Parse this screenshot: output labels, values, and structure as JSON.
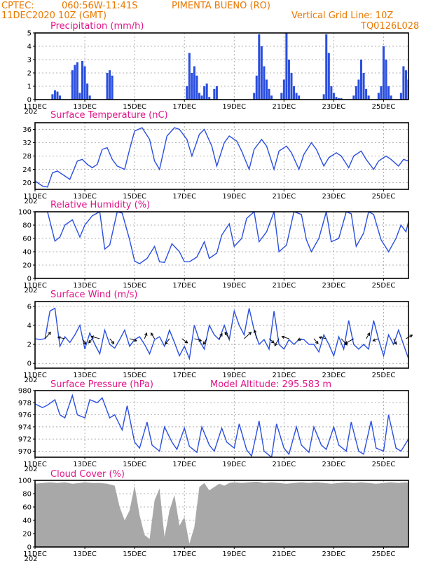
{
  "header": {
    "source": "CPTEC:",
    "coords": "060:56W-11:41S",
    "station": "PIMENTA BUENO (RO)",
    "datetime": "11DEC2020 10Z (GMT)",
    "grid_note": "Vertical Grid Line: 10Z",
    "code": "TQ0126L028"
  },
  "colors": {
    "header": "#e87800",
    "titles": "#e0158a",
    "series": "#2a4ee0",
    "cloud": "#a8a8a8",
    "frame": "#000000"
  },
  "x_axis": {
    "start_day": 11,
    "end_day": 26,
    "tick_labels": [
      "11DEC",
      "13DEC",
      "15DEC",
      "17DEC",
      "19DEC",
      "21DEC",
      "23DEC",
      "25DEC"
    ],
    "tick_days": [
      11,
      13,
      15,
      17,
      19,
      21,
      23,
      25
    ],
    "stub_label": "202"
  },
  "chart_data": [
    {
      "id": "precip",
      "type": "bar",
      "title": "Precipitation (mm/h)",
      "ylim": [
        0,
        5
      ],
      "yticks": [
        0,
        1,
        2,
        3,
        4,
        5
      ],
      "grid": true,
      "x": [
        11.7,
        11.8,
        11.9,
        12.0,
        12.5,
        12.6,
        12.7,
        12.8,
        12.9,
        13.0,
        13.1,
        13.2,
        13.9,
        14.0,
        14.1,
        17.1,
        17.2,
        17.3,
        17.4,
        17.5,
        17.6,
        17.7,
        17.8,
        17.9,
        18.0,
        18.2,
        18.3,
        19.8,
        19.9,
        20.0,
        20.1,
        20.2,
        20.3,
        20.4,
        20.5,
        20.9,
        21.0,
        21.1,
        21.2,
        21.3,
        21.4,
        21.5,
        21.6,
        22.6,
        22.7,
        22.8,
        22.9,
        23.0,
        23.1,
        23.2,
        23.3,
        23.8,
        23.9,
        24.0,
        24.1,
        24.2,
        24.3,
        24.4,
        24.8,
        24.9,
        25.0,
        25.1,
        25.2,
        25.3,
        25.7,
        25.8,
        25.9,
        26.0,
        26.1
      ],
      "values": [
        0.4,
        0.7,
        0.6,
        0.3,
        2.2,
        2.6,
        2.8,
        0.5,
        2.9,
        2.5,
        1.2,
        0.3,
        2.0,
        2.2,
        1.8,
        1.0,
        3.5,
        2.0,
        2.5,
        1.8,
        0.5,
        0.3,
        1.0,
        1.2,
        0.2,
        0.8,
        1.0,
        0.5,
        1.8,
        4.9,
        4.0,
        2.5,
        1.5,
        0.8,
        0.3,
        0.5,
        1.5,
        5.0,
        3.0,
        2.0,
        1.0,
        0.5,
        0.3,
        0.4,
        4.9,
        3.5,
        1.0,
        0.5,
        0.2,
        0.1,
        0.1,
        0.3,
        1.0,
        1.5,
        3.0,
        2.0,
        0.8,
        0.3,
        0.5,
        1.0,
        4.0,
        3.0,
        1.0,
        0.3,
        0.5,
        2.5,
        2.2,
        1.5,
        0.8
      ]
    },
    {
      "id": "temp",
      "type": "line",
      "title": "Surface Temperature (nC)",
      "ylim": [
        18,
        38
      ],
      "yticks": [
        20,
        24,
        28,
        32,
        36
      ],
      "grid": true,
      "x": [
        11.0,
        11.3,
        11.5,
        11.7,
        11.9,
        12.2,
        12.4,
        12.7,
        12.9,
        13.1,
        13.3,
        13.5,
        13.7,
        13.9,
        14.1,
        14.3,
        14.6,
        14.8,
        15.0,
        15.3,
        15.6,
        15.8,
        16.0,
        16.3,
        16.6,
        16.8,
        17.1,
        17.3,
        17.6,
        17.8,
        18.1,
        18.3,
        18.6,
        18.8,
        19.1,
        19.3,
        19.6,
        19.8,
        20.1,
        20.3,
        20.6,
        20.8,
        21.1,
        21.3,
        21.6,
        21.8,
        22.1,
        22.3,
        22.6,
        22.8,
        23.1,
        23.3,
        23.6,
        23.8,
        24.1,
        24.3,
        24.6,
        24.8,
        25.1,
        25.3,
        25.6,
        25.8,
        26.0
      ],
      "values": [
        20.5,
        19.0,
        18.7,
        23.0,
        23.5,
        22.0,
        21.0,
        26.5,
        27.0,
        25.5,
        24.5,
        25.5,
        30.0,
        30.5,
        27.0,
        25.0,
        24.0,
        30.0,
        35.5,
        36.5,
        33.0,
        26.5,
        24.0,
        34.0,
        36.5,
        36.0,
        33.0,
        28.0,
        34.5,
        36.0,
        31.0,
        25.0,
        32.0,
        34.0,
        32.5,
        29.5,
        24.0,
        30.0,
        33.0,
        31.0,
        24.0,
        29.5,
        31.0,
        29.0,
        24.0,
        28.5,
        32.0,
        30.0,
        25.0,
        27.5,
        29.0,
        28.0,
        24.5,
        28.0,
        29.5,
        27.0,
        24.0,
        26.5,
        28.0,
        27.0,
        25.0,
        27.0,
        26.5
      ]
    },
    {
      "id": "rh",
      "type": "line",
      "title": "Relative Humidity (%)",
      "ylim": [
        0,
        100
      ],
      "yticks": [
        0,
        20,
        40,
        60,
        80,
        100
      ],
      "grid": true,
      "x": [
        11.0,
        11.5,
        11.8,
        12.0,
        12.2,
        12.5,
        12.8,
        13.0,
        13.3,
        13.6,
        13.8,
        14.0,
        14.3,
        14.5,
        14.8,
        15.0,
        15.2,
        15.5,
        15.8,
        16.0,
        16.2,
        16.5,
        16.8,
        17.0,
        17.2,
        17.5,
        17.8,
        18.0,
        18.3,
        18.5,
        18.8,
        19.0,
        19.3,
        19.5,
        19.8,
        20.0,
        20.3,
        20.6,
        20.8,
        21.1,
        21.4,
        21.7,
        21.9,
        22.1,
        22.4,
        22.7,
        22.9,
        23.2,
        23.5,
        23.7,
        23.9,
        24.2,
        24.4,
        24.6,
        24.9,
        25.2,
        25.5,
        25.7,
        25.9,
        26.0
      ],
      "values": [
        100,
        100,
        56,
        62,
        80,
        88,
        62,
        80,
        94,
        100,
        44,
        50,
        100,
        98,
        58,
        26,
        22,
        30,
        48,
        25,
        24,
        52,
        40,
        25,
        25,
        32,
        55,
        30,
        38,
        65,
        82,
        48,
        60,
        90,
        100,
        55,
        70,
        100,
        40,
        50,
        100,
        96,
        58,
        40,
        60,
        100,
        55,
        60,
        100,
        97,
        48,
        68,
        100,
        96,
        58,
        40,
        60,
        80,
        70,
        85
      ]
    },
    {
      "id": "wind",
      "type": "line",
      "title": "Surface Wind (m/s)",
      "ylim": [
        -0.5,
        6.5
      ],
      "yticks": [
        0,
        2,
        4,
        6
      ],
      "grid": true,
      "x": [
        11.0,
        11.2,
        11.4,
        11.6,
        11.8,
        12.0,
        12.2,
        12.4,
        12.6,
        12.8,
        13.0,
        13.2,
        13.4,
        13.6,
        13.8,
        14.0,
        14.2,
        14.4,
        14.6,
        14.8,
        15.0,
        15.2,
        15.4,
        15.6,
        15.8,
        16.0,
        16.2,
        16.4,
        16.6,
        16.8,
        17.0,
        17.2,
        17.4,
        17.6,
        17.8,
        18.0,
        18.2,
        18.4,
        18.6,
        18.8,
        19.0,
        19.2,
        19.4,
        19.6,
        19.8,
        20.0,
        20.2,
        20.4,
        20.6,
        20.8,
        21.0,
        21.2,
        21.4,
        21.6,
        21.8,
        22.0,
        22.2,
        22.4,
        22.6,
        22.8,
        23.0,
        23.2,
        23.4,
        23.6,
        23.8,
        24.0,
        24.2,
        24.4,
        24.6,
        24.8,
        25.0,
        25.2,
        25.4,
        25.6,
        25.8,
        26.0
      ],
      "values": [
        2.6,
        2.5,
        2.6,
        5.5,
        5.8,
        1.8,
        2.8,
        2.2,
        3.0,
        4.0,
        1.5,
        3.2,
        2.0,
        1.0,
        3.5,
        2.0,
        1.6,
        2.5,
        3.5,
        1.8,
        2.5,
        2.8,
        2.0,
        1.0,
        2.5,
        2.8,
        1.8,
        3.5,
        2.2,
        0.8,
        1.8,
        0.5,
        4.0,
        2.4,
        1.5,
        4.0,
        3.0,
        2.5,
        4.0,
        2.5,
        5.5,
        4.0,
        3.0,
        5.8,
        3.5,
        2.0,
        2.5,
        1.5,
        5.5,
        2.0,
        1.5,
        2.5,
        2.0,
        2.5,
        2.5,
        2.0,
        2.0,
        1.2,
        3.0,
        2.0,
        0.8,
        2.8,
        1.5,
        4.5,
        2.0,
        1.5,
        2.0,
        1.5,
        4.5,
        2.5,
        0.8,
        3.0,
        2.0,
        3.5,
        2.0,
        0.5
      ],
      "vectors": {
        "x": [
          11.4,
          12.2,
          12.9,
          13.3,
          13.6,
          14.0,
          14.8,
          15.4,
          15.8,
          16.4,
          16.9,
          17.4,
          17.9,
          18.4,
          18.8,
          19.4,
          19.9,
          20.4,
          20.8,
          21.2,
          21.7,
          22.2,
          22.7,
          23.3,
          23.8,
          24.3,
          24.8,
          25.4,
          25.9
        ],
        "u": [
          0.8,
          -1.0,
          0.5,
          -0.5,
          -1.2,
          0.6,
          1.0,
          0.3,
          -0.5,
          -0.6,
          0.8,
          1.0,
          -0.5,
          0.4,
          -0.6,
          1.0,
          -0.3,
          0.7,
          -0.6,
          -1.0,
          -0.5,
          0.6,
          -1.0,
          0.8,
          -1.2,
          0.5,
          -0.8,
          0.4,
          0.9
        ],
        "v": [
          0.9,
          0.2,
          -0.8,
          -0.6,
          0.3,
          -0.7,
          -0.3,
          0.8,
          0.8,
          -0.8,
          -0.6,
          -0.3,
          -0.8,
          0.7,
          0.9,
          0.9,
          1.2,
          -0.6,
          -1.0,
          0.3,
          -0.2,
          -0.7,
          0.2,
          -0.9,
          -0.7,
          0.8,
          -0.3,
          -0.8,
          0.5
        ]
      }
    },
    {
      "id": "pressure",
      "type": "line",
      "title": "Surface Pressure (hPa)",
      "annotation": "Model Altitude: 295.583 m",
      "ylim": [
        969,
        980
      ],
      "yticks": [
        970,
        972,
        974,
        976,
        978,
        980
      ],
      "grid": true,
      "x": [
        11.0,
        11.3,
        11.5,
        11.8,
        12.0,
        12.2,
        12.5,
        12.7,
        13.0,
        13.2,
        13.5,
        13.7,
        14.0,
        14.2,
        14.5,
        14.7,
        15.0,
        15.2,
        15.5,
        15.7,
        16.0,
        16.2,
        16.5,
        16.7,
        17.0,
        17.2,
        17.5,
        17.7,
        18.0,
        18.2,
        18.5,
        18.7,
        19.0,
        19.2,
        19.5,
        19.7,
        20.0,
        20.2,
        20.5,
        20.7,
        21.0,
        21.2,
        21.5,
        21.7,
        22.0,
        22.2,
        22.5,
        22.7,
        23.0,
        23.2,
        23.5,
        23.7,
        24.0,
        24.2,
        24.5,
        24.7,
        25.0,
        25.2,
        25.5,
        25.7,
        26.0
      ],
      "values": [
        977.8,
        977.2,
        977.6,
        978.5,
        976.0,
        975.5,
        979.2,
        976.0,
        975.5,
        978.5,
        978.0,
        978.8,
        975.5,
        976.0,
        973.5,
        977.5,
        971.5,
        970.5,
        974.8,
        971.0,
        970.0,
        974.0,
        971.5,
        970.3,
        973.8,
        970.8,
        969.8,
        974.0,
        971.0,
        970.0,
        973.8,
        971.5,
        970.5,
        974.5,
        970.2,
        969.2,
        975.0,
        970.0,
        969.0,
        974.5,
        970.5,
        969.5,
        974.0,
        971.0,
        969.8,
        974.0,
        971.0,
        970.3,
        974.0,
        971.0,
        970.0,
        974.8,
        970.0,
        969.5,
        975.0,
        970.5,
        970.0,
        976.0,
        970.5,
        970.0,
        972.0
      ]
    },
    {
      "id": "cloud",
      "type": "area",
      "title": "Cloud Cover (%)",
      "ylim": [
        0,
        100
      ],
      "yticks": [
        0,
        20,
        40,
        60,
        80,
        100
      ],
      "grid": true,
      "x": [
        11.0,
        11.3,
        11.6,
        11.9,
        12.2,
        12.5,
        12.8,
        13.0,
        13.3,
        13.6,
        13.9,
        14.2,
        14.4,
        14.6,
        14.8,
        15.0,
        15.2,
        15.4,
        15.6,
        15.8,
        16.0,
        16.2,
        16.4,
        16.6,
        16.8,
        17.0,
        17.2,
        17.4,
        17.6,
        17.8,
        18.0,
        18.2,
        18.4,
        18.6,
        18.8,
        19.0,
        19.3,
        19.6,
        19.9,
        20.2,
        20.5,
        20.8,
        21.1,
        21.4,
        21.7,
        22.0,
        22.3,
        22.6,
        22.9,
        23.2,
        23.5,
        23.8,
        24.1,
        24.4,
        24.7,
        25.0,
        25.3,
        25.6,
        25.9,
        26.0
      ],
      "values": [
        95,
        96,
        97,
        96,
        97,
        95,
        96,
        97,
        96,
        96,
        95,
        92,
        60,
        40,
        55,
        92,
        48,
        18,
        12,
        70,
        88,
        15,
        55,
        78,
        32,
        45,
        5,
        30,
        90,
        96,
        85,
        90,
        95,
        92,
        96,
        97,
        96,
        97,
        98,
        96,
        97,
        96,
        95,
        96,
        97,
        96,
        97,
        96,
        95,
        96,
        97,
        96,
        97,
        96,
        95,
        96,
        97,
        96,
        97,
        96
      ]
    }
  ]
}
